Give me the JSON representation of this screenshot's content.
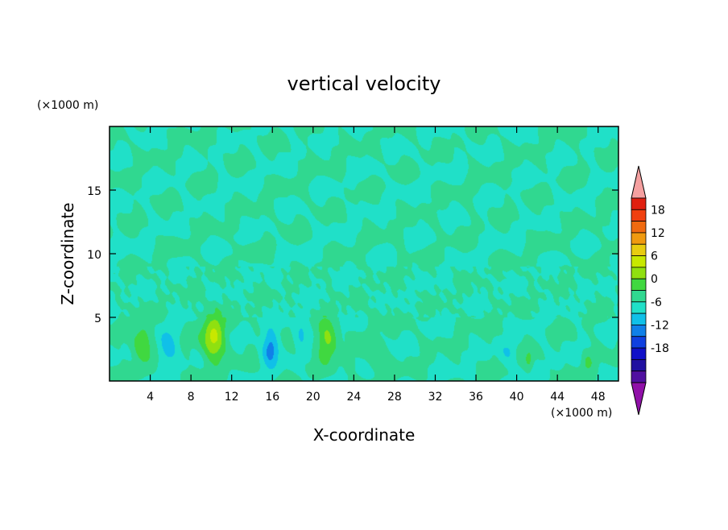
{
  "chart_data": {
    "type": "heatmap",
    "title": "vertical velocity",
    "xlabel": "X-coordinate",
    "ylabel": "Z-coordinate",
    "x_unit": "(×1000 m)",
    "y_unit": "(×1000 m)",
    "xlim": [
      0,
      50
    ],
    "ylim": [
      0,
      20
    ],
    "x_ticks": [
      4,
      8,
      12,
      16,
      20,
      24,
      28,
      32,
      36,
      40,
      44,
      48
    ],
    "y_ticks": [
      5,
      10,
      15
    ],
    "x_tick_labels": [
      "4",
      "8",
      "12",
      "16",
      "20",
      "24",
      "28",
      "32",
      "36",
      "40",
      "44",
      "48"
    ],
    "y_tick_labels": [
      "5",
      "10",
      "15"
    ],
    "colorbar": {
      "levels": [
        -21,
        -18,
        -15,
        -12,
        -9,
        -6,
        -3,
        0,
        3,
        6,
        9,
        12,
        15,
        18,
        21
      ],
      "labels": [
        "18",
        "12",
        "6",
        "0",
        "-6",
        "-12",
        "-18"
      ],
      "label_values": [
        18,
        12,
        6,
        0,
        -6,
        -12,
        -18
      ],
      "colors_top_to_bottom": [
        "#f5a0a0",
        "#e02010",
        "#f04010",
        "#f06a10",
        "#f09a10",
        "#e8cc10",
        "#c8e800",
        "#90e010",
        "#40d840",
        "#30d890",
        "#20e0c8",
        "#10c0e8",
        "#1080e8",
        "#1040e0",
        "#1010c8",
        "#2010a0",
        "#5010a0",
        "#9010a8"
      ]
    },
    "background_value": 0,
    "features": [
      {
        "x": 3.2,
        "z": 3.0,
        "w": 6.5,
        "sx": 0.9,
        "sz": 1.5
      },
      {
        "x": 5.7,
        "z": 2.6,
        "w": -5.0,
        "sx": 0.9,
        "sz": 1.3
      },
      {
        "x": 10.2,
        "z": 3.4,
        "w": 10.0,
        "sx": 1.1,
        "sz": 1.9
      },
      {
        "x": 15.8,
        "z": 2.6,
        "w": -7.5,
        "sx": 0.8,
        "sz": 1.4
      },
      {
        "x": 18.8,
        "z": 4.0,
        "w": -3.5,
        "sx": 0.7,
        "sz": 1.3
      },
      {
        "x": 21.4,
        "z": 3.2,
        "w": 7.0,
        "sx": 1.0,
        "sz": 1.5
      },
      {
        "x": 23.6,
        "z": 1.4,
        "w": 2.5,
        "sx": 0.4,
        "sz": 0.6
      },
      {
        "x": 26.2,
        "z": 1.9,
        "w": 3.5,
        "sx": 0.8,
        "sz": 1.0
      },
      {
        "x": 26.0,
        "z": 4.8,
        "w": 3.0,
        "sx": 0.5,
        "sz": 0.9
      },
      {
        "x": 39.2,
        "z": 2.3,
        "w": -3.0,
        "sx": 0.8,
        "sz": 0.8
      },
      {
        "x": 41.2,
        "z": 1.6,
        "w": 3.5,
        "sx": 0.4,
        "sz": 0.8
      },
      {
        "x": 47.0,
        "z": 1.5,
        "w": 3.5,
        "sx": 0.5,
        "sz": 0.7
      },
      {
        "x": 44.0,
        "z": 1.4,
        "w": -2.0,
        "sx": 0.5,
        "sz": 0.5
      }
    ]
  }
}
